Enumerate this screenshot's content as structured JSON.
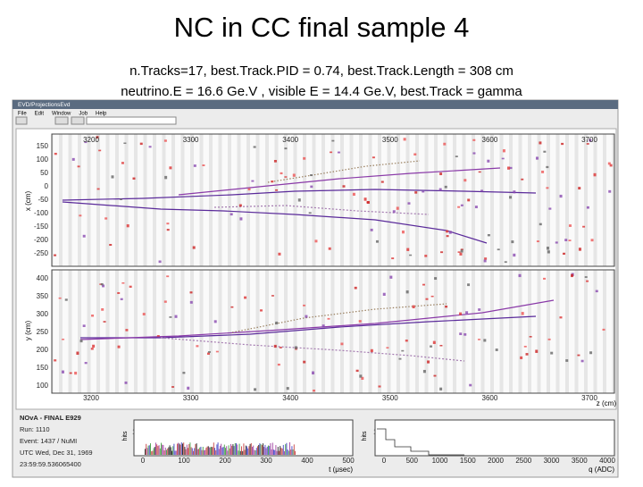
{
  "title": "NC in CC final sample 4",
  "subtitle": [
    "n.Tracks=17, best.Track.PID = 0.74, best.Track.Length = 308 cm",
    "neutrino.E = 16.6 Ge.V , visible E = 14.4 Ge.V, best.Track = gamma"
  ],
  "screenshot": {
    "window_title": "EVD/ProjectionsEvd",
    "menu": [
      "File",
      "Edit",
      "Window",
      "Job",
      "Help"
    ],
    "z_ticks": [
      3200,
      3300,
      3400,
      3500,
      3600,
      3700
    ],
    "z_label": "z (cm)",
    "xz_view": {
      "axis_label": "x (cm)",
      "ticks": [
        150,
        100,
        50,
        0,
        -50,
        -100,
        -150,
        -200,
        -250
      ]
    },
    "yz_view": {
      "axis_label": "y (cm)",
      "ticks": [
        400,
        350,
        300,
        250,
        200,
        150,
        100
      ]
    },
    "info": [
      "NOvA - FINAL E929",
      "Run: 1110",
      "Event: 1437 / NuMI",
      "UTC Wed, Dec 31, 1969",
      "23:59:59.536065400"
    ],
    "time_hist": {
      "x_label": "t (μsec)",
      "x_ticks": [
        0,
        100,
        200,
        300,
        400,
        500
      ],
      "y_label": "hits",
      "y_ticks": [
        10,
        1
      ]
    },
    "charge_hist": {
      "x_label": "q (ADC)",
      "x_ticks": [
        0,
        500,
        1000,
        1500,
        2000,
        2500,
        3000,
        3500,
        4000
      ],
      "y_label": "hits",
      "y_ticks": [
        10,
        1
      ]
    }
  }
}
